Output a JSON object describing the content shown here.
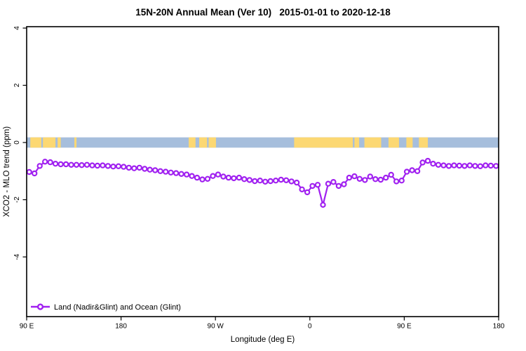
{
  "title": "15N-20N Annual Mean (Ver 10)   2015-01-01 to 2020-12-18",
  "colors": {
    "line": "#A020F0",
    "marker_fill": "#FFFFFF",
    "ocean": "#A6BEDC",
    "land": "#FCD873",
    "axis": "#000000",
    "background": "#FFFFFF"
  },
  "chart_data": {
    "type": "line",
    "title": "15N-20N Annual Mean (Ver 10)   2015-01-01 to 2020-12-18",
    "xlabel": "Longitude (deg E)",
    "ylabel": "XCO2 - MLO trend (ppm)",
    "xlim": [
      90,
      540
    ],
    "ylim": [
      -6.1,
      4.1
    ],
    "grid": false,
    "x_ticks": [
      {
        "value": 90,
        "label": "90 E"
      },
      {
        "value": 180,
        "label": "180"
      },
      {
        "value": 270,
        "label": "90 W"
      },
      {
        "value": 360,
        "label": "0"
      },
      {
        "value": 450,
        "label": "90 E"
      },
      {
        "value": 540,
        "label": "180"
      }
    ],
    "y_ticks": [
      {
        "value": -4,
        "label": "-4"
      },
      {
        "value": -2,
        "label": "-2"
      },
      {
        "value": 0,
        "label": "0"
      },
      {
        "value": 2,
        "label": "2"
      },
      {
        "value": 4,
        "label": "4"
      }
    ],
    "legend": {
      "position": "bottom-left",
      "items": [
        {
          "label": "Land (Nadir&Glint) and Ocean (Glint)",
          "color": "#A020F0",
          "marker": "open-circle",
          "line": true
        }
      ]
    },
    "series": [
      {
        "name": "Land (Nadir&Glint) and Ocean (Glint)",
        "color": "#A020F0",
        "marker": "open-circle",
        "x": [
          92.5,
          97.5,
          102.5,
          107.5,
          112.5,
          117.5,
          122.5,
          127.5,
          132.5,
          137.5,
          142.5,
          147.5,
          152.5,
          157.5,
          162.5,
          167.5,
          172.5,
          177.5,
          182.5,
          187.5,
          192.5,
          197.5,
          202.5,
          207.5,
          212.5,
          217.5,
          222.5,
          227.5,
          232.5,
          237.5,
          242.5,
          247.5,
          252.5,
          257.5,
          262.5,
          267.5,
          272.5,
          277.5,
          282.5,
          287.5,
          292.5,
          297.5,
          302.5,
          307.5,
          312.5,
          317.5,
          322.5,
          327.5,
          332.5,
          337.5,
          342.5,
          347.5,
          352.5,
          357.5,
          362.5,
          367.5,
          372.5,
          377.5,
          382.5,
          387.5,
          392.5,
          397.5,
          402.5,
          407.5,
          412.5,
          417.5,
          422.5,
          427.5,
          432.5,
          437.5,
          442.5,
          447.5,
          452.5,
          457.5,
          462.5,
          467.5,
          472.5,
          477.5,
          482.5,
          487.5,
          492.5,
          497.5,
          502.5,
          507.5,
          512.5,
          517.5,
          522.5,
          527.5,
          532.5,
          537.5
        ],
        "values": [
          -1.03,
          -1.08,
          -0.82,
          -0.67,
          -0.69,
          -0.74,
          -0.76,
          -0.76,
          -0.78,
          -0.78,
          -0.79,
          -0.78,
          -0.8,
          -0.81,
          -0.8,
          -0.82,
          -0.84,
          -0.83,
          -0.85,
          -0.88,
          -0.9,
          -0.88,
          -0.92,
          -0.95,
          -0.97,
          -1.0,
          -1.02,
          -1.05,
          -1.07,
          -1.1,
          -1.12,
          -1.17,
          -1.23,
          -1.29,
          -1.27,
          -1.17,
          -1.12,
          -1.19,
          -1.23,
          -1.25,
          -1.23,
          -1.28,
          -1.31,
          -1.35,
          -1.33,
          -1.37,
          -1.35,
          -1.33,
          -1.3,
          -1.32,
          -1.36,
          -1.4,
          -1.64,
          -1.74,
          -1.52,
          -1.48,
          -2.18,
          -1.44,
          -1.38,
          -1.52,
          -1.46,
          -1.23,
          -1.18,
          -1.27,
          -1.31,
          -1.19,
          -1.28,
          -1.3,
          -1.23,
          -1.13,
          -1.36,
          -1.33,
          -1.02,
          -0.97,
          -1.0,
          -0.7,
          -0.64,
          -0.74,
          -0.78,
          -0.8,
          -0.82,
          -0.8,
          -0.81,
          -0.82,
          -0.8,
          -0.82,
          -0.83,
          -0.8,
          -0.81,
          -0.82
        ]
      }
    ],
    "surface_band": {
      "y_center": 0,
      "half_height_units": 0.18,
      "ocean_color": "#A6BEDC",
      "land_color": "#FCD873",
      "ocean_segments": [
        [
          90,
          540
        ]
      ],
      "land_segments": [
        [
          93.5,
          104
        ],
        [
          105.5,
          117.5
        ],
        [
          119.5,
          122.5
        ],
        [
          135.5,
          137.5
        ],
        [
          244.5,
          251
        ],
        [
          254.5,
          262
        ],
        [
          263.5,
          270.5
        ],
        [
          345,
          401
        ],
        [
          402.5,
          407
        ],
        [
          412,
          428
        ],
        [
          435,
          445
        ],
        [
          452,
          458
        ],
        [
          464,
          472.5
        ]
      ]
    }
  }
}
